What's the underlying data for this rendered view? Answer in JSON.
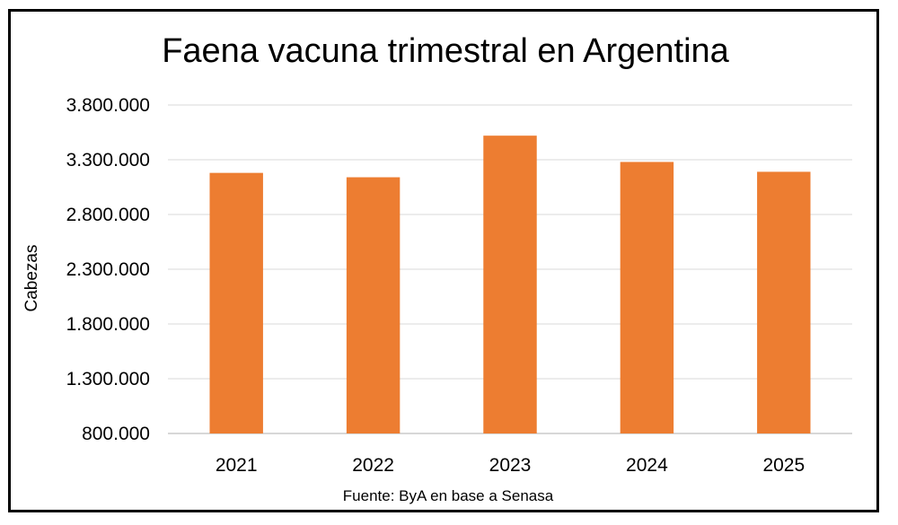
{
  "chart_data": {
    "type": "bar",
    "title": "Faena vacuna trimestral en Argentina",
    "xlabel": "",
    "ylabel": "Cabezas",
    "source": "Fuente: ByA en base a Senasa",
    "categories": [
      "2021",
      "2022",
      "2023",
      "2024",
      "2025"
    ],
    "values": [
      3180000,
      3140000,
      3520000,
      3280000,
      3190000
    ],
    "ylim": [
      800000,
      3800000
    ],
    "yticks": [
      800000,
      1300000,
      1800000,
      2300000,
      2800000,
      3300000,
      3800000
    ],
    "ytick_labels": [
      "800.000",
      "1.300.000",
      "1.800.000",
      "2.300.000",
      "2.800.000",
      "3.300.000",
      "3.800.000"
    ],
    "grid": true,
    "bar_color": "#ED7D31",
    "grid_color": "#D9D9D9"
  }
}
